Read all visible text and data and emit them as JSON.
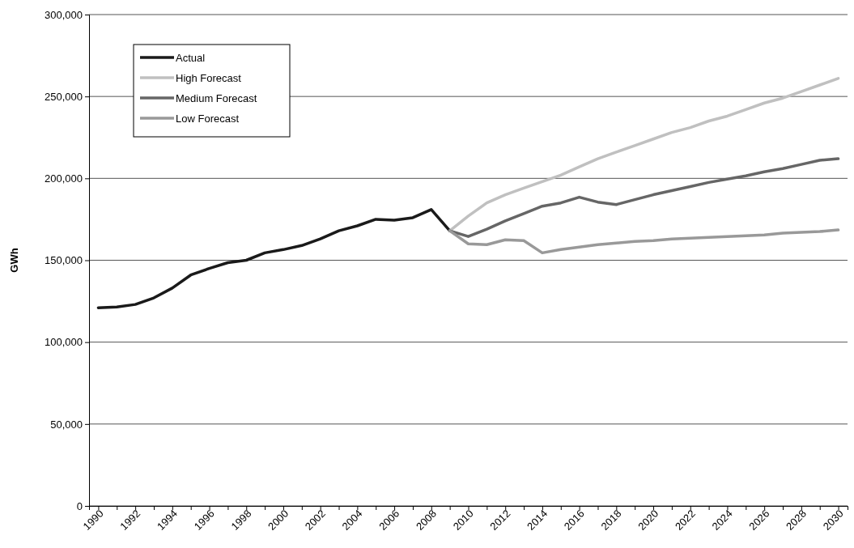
{
  "chart_data": {
    "type": "line",
    "ylabel": "GWh",
    "categories": [
      "1990",
      null,
      "1992",
      null,
      "1994",
      null,
      "1996",
      null,
      "1998",
      null,
      "2000",
      null,
      "2002",
      null,
      "2004",
      null,
      "2006",
      null,
      "2008",
      null,
      "2010",
      null,
      "2012",
      null,
      "2014",
      null,
      "2016",
      null,
      "2018",
      null,
      "2020",
      null,
      "2022",
      null,
      "2024",
      null,
      "2026",
      null,
      "2028",
      null,
      "2030"
    ],
    "series": [
      {
        "name": "Actual",
        "color": "#1a1a1a",
        "values": [
          121000,
          121500,
          123000,
          127000,
          133000,
          141000,
          145000,
          148500,
          150000,
          154500,
          156500,
          159000,
          163000,
          168000,
          171000,
          175000,
          174500,
          176000,
          181000,
          168000,
          null,
          null,
          null,
          null,
          null,
          null,
          null,
          null,
          null,
          null,
          null,
          null,
          null,
          null,
          null,
          null,
          null,
          null,
          null,
          null,
          null
        ]
      },
      {
        "name": "High Forecast",
        "color": "#c0c0c0",
        "values": [
          null,
          null,
          null,
          null,
          null,
          null,
          null,
          null,
          null,
          null,
          null,
          null,
          null,
          null,
          null,
          null,
          null,
          null,
          null,
          168000,
          177000,
          185000,
          190000,
          194000,
          198000,
          202000,
          207000,
          212000,
          216000,
          220000,
          224000,
          228000,
          231000,
          235000,
          238000,
          242000,
          246000,
          249000,
          253000,
          257000,
          261000
        ]
      },
      {
        "name": "Medium Forecast",
        "color": "#666666",
        "values": [
          null,
          null,
          null,
          null,
          null,
          null,
          null,
          null,
          null,
          null,
          null,
          null,
          null,
          null,
          null,
          null,
          null,
          null,
          null,
          168000,
          164500,
          169000,
          174000,
          178500,
          183000,
          185000,
          188500,
          185500,
          184000,
          187000,
          190000,
          192500,
          195000,
          197500,
          199500,
          201500,
          204000,
          206000,
          208500,
          211000,
          212000
        ]
      },
      {
        "name": "Low Forecast",
        "color": "#999999",
        "values": [
          null,
          null,
          null,
          null,
          null,
          null,
          null,
          null,
          null,
          null,
          null,
          null,
          null,
          null,
          null,
          null,
          null,
          null,
          null,
          168000,
          160000,
          159500,
          162500,
          162000,
          154500,
          156500,
          158000,
          159500,
          160500,
          161500,
          162000,
          163000,
          163500,
          164000,
          164500,
          165000,
          165500,
          166500,
          167000,
          167500,
          168500
        ]
      }
    ],
    "ylim": [
      0,
      300000
    ],
    "yticks": [
      0,
      {
        "value": 50000,
        "label": "50,000"
      },
      {
        "value": 100000,
        "label": "100,000"
      },
      {
        "value": 150000,
        "label": "150,000"
      },
      {
        "value": 200000,
        "label": "200,000"
      },
      {
        "value": 250000,
        "label": "250,000"
      },
      {
        "value": 300000,
        "label": "300,000"
      }
    ],
    "grid": "y",
    "legend": "top left",
    "marker": "none",
    "line_style": "solid"
  }
}
